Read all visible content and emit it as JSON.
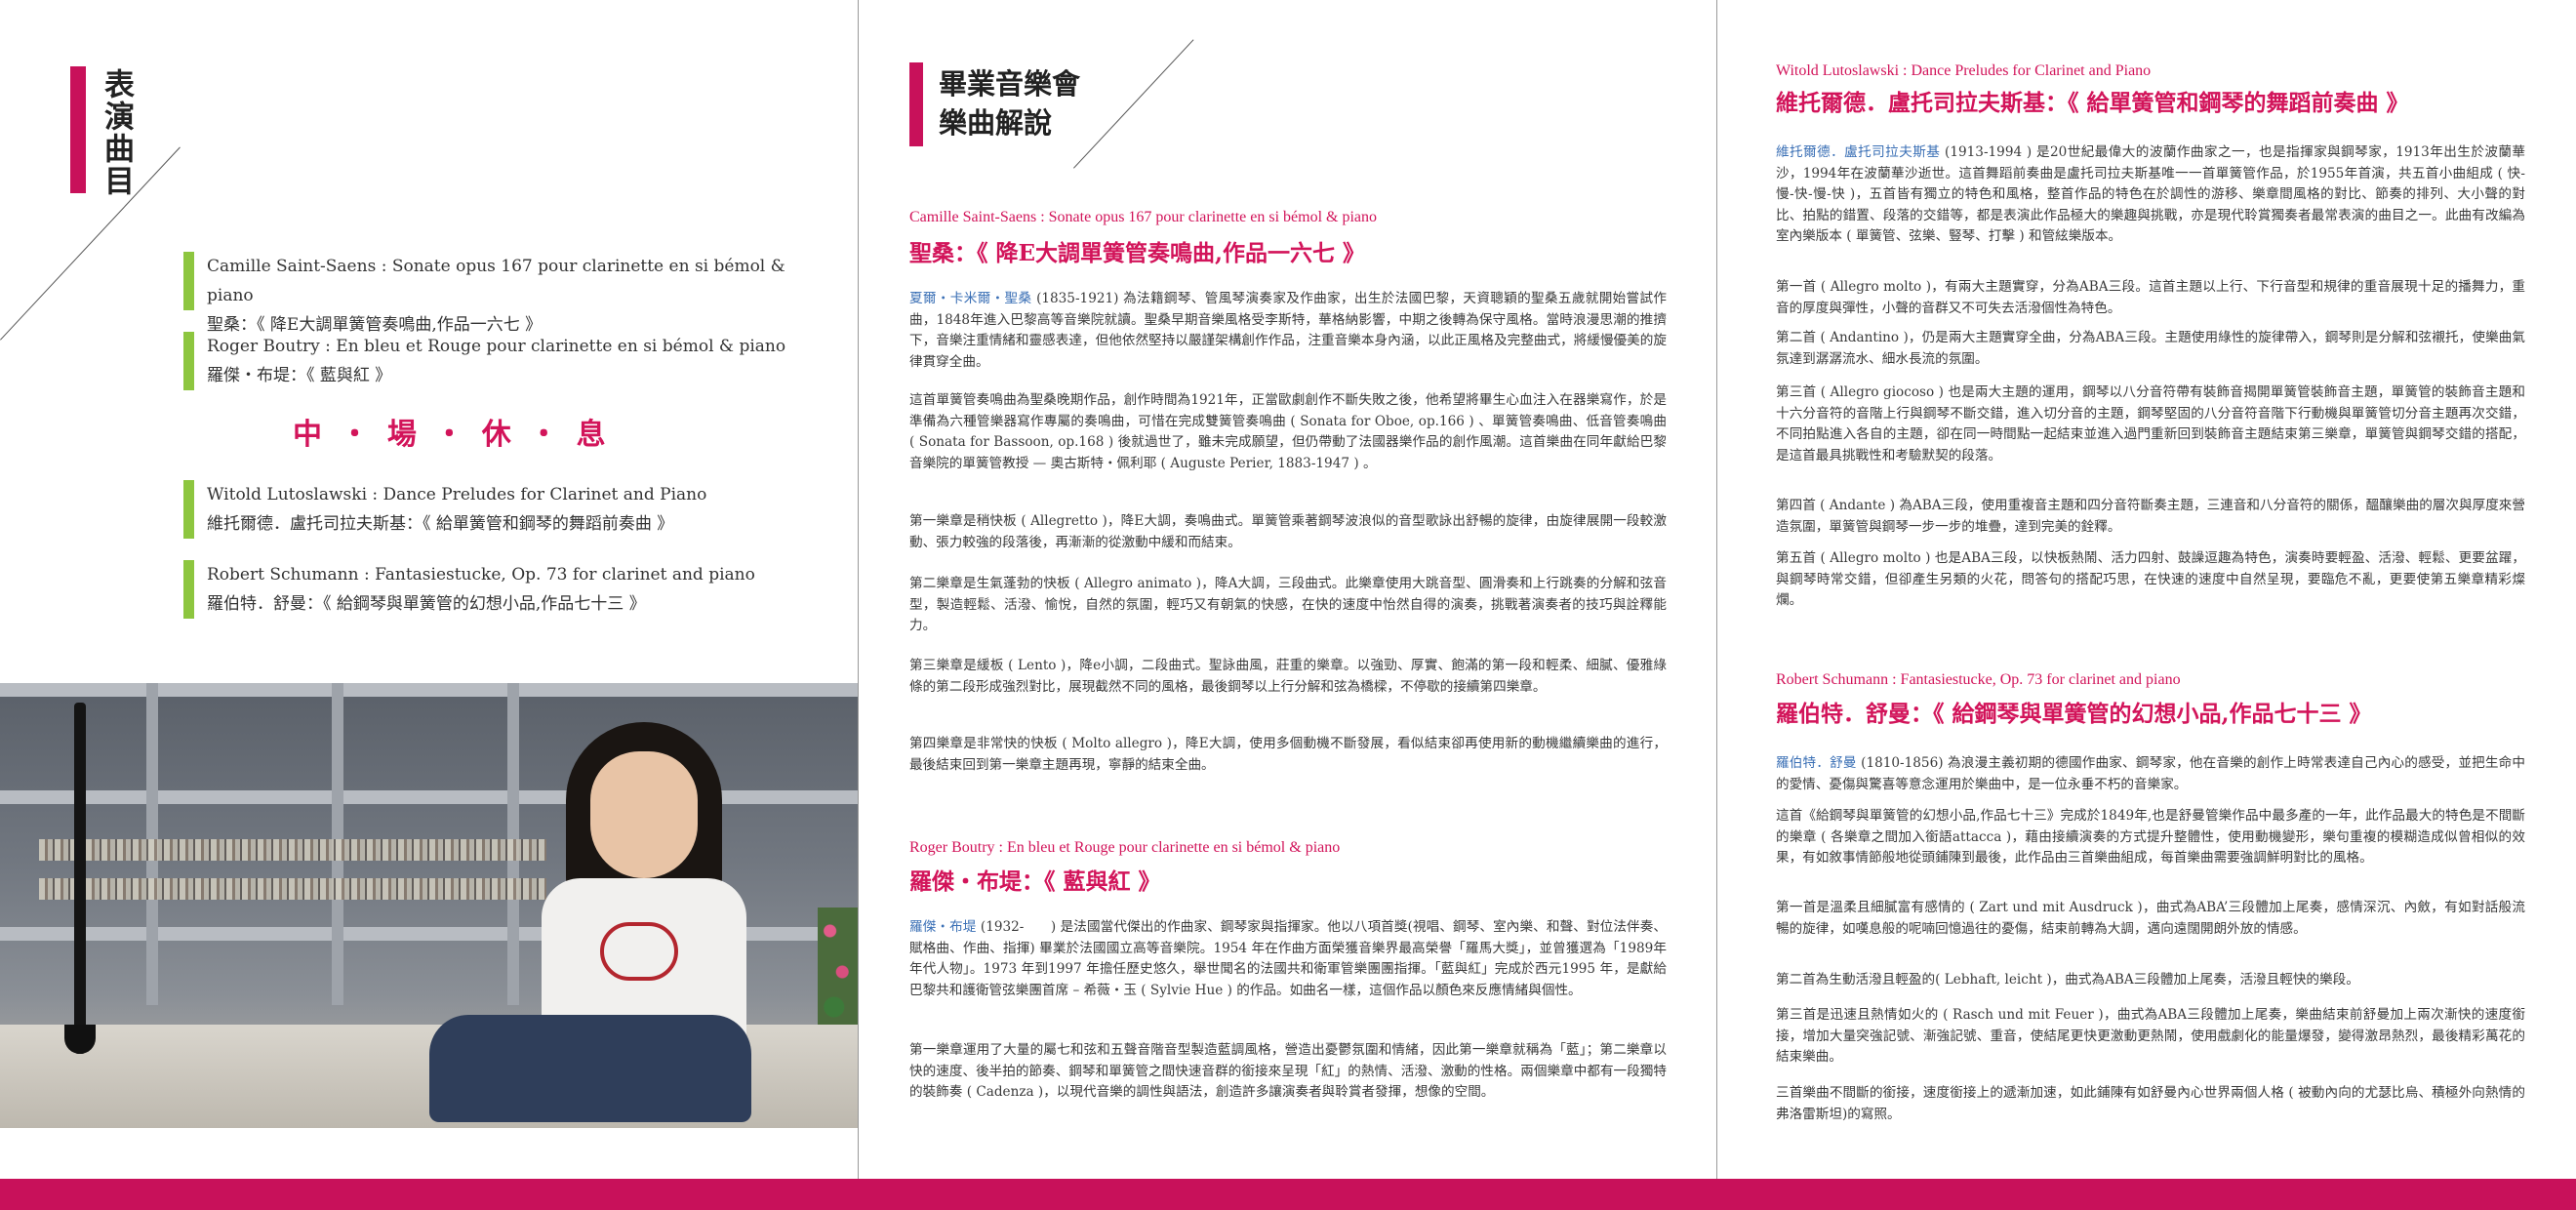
{
  "program": {
    "title": "表演曲目",
    "items": [
      {
        "en": "Camille Saint-Saens : Sonate opus 167 pour clarinette en si bémol & piano",
        "zh": "聖桑：《 降E大調單簧管奏鳴曲,作品一六七 》"
      },
      {
        "en": "Roger Boutry : En bleu et Rouge pour clarinette en si bémol & piano",
        "zh": "羅傑・布堤：《 藍與紅 》"
      },
      {
        "en": "Witold Lutoslawski : Dance Preludes for Clarinet and Piano",
        "zh": "維托爾德．盧托司拉夫斯基：《 給單簧管和鋼琴的舞蹈前奏曲 》"
      },
      {
        "en": "Robert Schumann : Fantasiestucke, Op. 73 for clarinet and piano",
        "zh": "羅伯特．舒曼：《 給鋼琴與單簧管的幻想小品,作品七十三 》"
      }
    ],
    "intermission": "中 ・ 場 ・ 休 ・ 息"
  },
  "notes": {
    "title_line1": "畢業音樂會",
    "title_line2": "樂曲解說",
    "saint_saens": {
      "en": "Camille Saint-Saens : Sonate opus 167 pour clarinette en si bémol & piano",
      "zh": "聖桑：《 降E大調單簧管奏鳴曲,作品一六七 》",
      "p1_name": "夏爾・卡米爾・聖桑",
      "p1": "(1835-1921) 為法籍鋼琴、管風琴演奏家及作曲家，出生於法國巴黎，天資聰穎的聖桑五歲就開始嘗試作曲，1848年進入巴黎高等音樂院就讀。聖桑早期音樂風格受李斯特，華格納影響，中期之後轉為保守風格。當時浪漫思潮的推擠下，音樂注重情緒和靈感表達，但他依然堅持以嚴謹架構創作作品，注重音樂本身內涵，以此正風格及完整曲式，將緩慢優美的旋律貫穿全曲。",
      "p2": "這首單簧管奏鳴曲為聖桑晚期作品，創作時間為1921年，正當歐劇創作不斷失敗之後，他希望將畢生心血注入在器樂寫作，於是準備為六種管樂器寫作專屬的奏鳴曲，可惜在完成雙簧管奏鳴曲 ( Sonata for Oboe, op.166 ) 、單簧管奏鳴曲、低音管奏鳴曲 ( Sonata for Bassoon, op.168 ) 後就過世了，雖未完成願望，但仍帶動了法國器樂作品的創作風潮。這首樂曲在同年獻給巴黎音樂院的單簧管教授 — 奧古斯特・佩利耶 ( Auguste Perier, 1883-1947 ) 。",
      "p3": "第一樂章是稍快板 ( Allegretto )，降E大調，奏鳴曲式。單簧管乘著鋼琴波浪似的音型歌詠出舒暢的旋律，由旋律展開一段較激動、張力較強的段落後，再漸漸的從激動中緩和而結束。",
      "p4": "第二樂章是生氣蓬勃的快板 ( Allegro animato )，降A大調，三段曲式。此樂章使用大跳音型、圓滑奏和上行跳奏的分解和弦音型，製造輕鬆、活潑、愉悅，自然的氛圍，輕巧又有朝氣的快感，在快的速度中怡然自得的演奏，挑戰著演奏者的技巧與詮釋能力。",
      "p5": "第三樂章是緩板 ( Lento )，降e小調，二段曲式。聖詠曲風，莊重的樂章。以強勁、厚實、飽滿的第一段和輕柔、細膩、優雅綠條的第二段形成強烈對比，展現截然不同的風格，最後鋼琴以上行分解和弦為橋樑，不停歇的接續第四樂章。",
      "p6": "第四樂章是非常快的快板 ( Molto allegro )，降E大調，使用多個動機不斷發展，看似結束卻再使用新的動機繼續樂曲的進行，最後結束回到第一樂章主題再現，寧靜的結束全曲。"
    },
    "boutry": {
      "en": "Roger Boutry : En bleu et Rouge pour clarinette en si bémol & piano",
      "zh": "羅傑・布堤：《 藍與紅 》",
      "p1_name": "羅傑・布堤",
      "p1": "(1932-　　) 是法國當代傑出的作曲家、鋼琴家與指揮家。他以八項首獎(視唱、鋼琴、室內樂、和聲、對位法伴奏、賦格曲、作曲、指揮) 畢業於法國國立高等音樂院。1954 年在作曲方面榮獲音樂界最高榮譽「羅馬大獎」，並曾獲選為「1989年年代人物」。1973 年到1997 年擔任歷史悠久，舉世聞名的法國共和衛軍管樂團團指揮。「藍與紅」完成於西元1995 年，是獻給巴黎共和護衛管弦樂團首席 – 希薇・玉 ( Sylvie Hue ) 的作品。如曲名一樣，這個作品以顏色來反應情緒與個性。",
      "p2": "第一樂章運用了大量的屬七和弦和五聲音階音型製造藍調風格，營造出憂鬱氛圍和情緒，因此第一樂章就稱為「藍」；第二樂章以快的速度、後半拍的節奏、鋼琴和單簧管之間快速音群的銜接來呈現「紅」的熱情、活潑、激動的性格。兩個樂章中都有一段獨特的裝飾奏 ( Cadenza )，以現代音樂的調性與語法，創造許多讓演奏者與聆賞者發揮，想像的空間。"
    },
    "lutoslawski": {
      "en": "Witold Lutoslawski : Dance Preludes for Clarinet and Piano",
      "zh": "維托爾德．盧托司拉夫斯基：《 給單簧管和鋼琴的舞蹈前奏曲 》",
      "p1_name": "維托爾德．盧托司拉夫斯基",
      "p1": "(1913-1994 ) 是20世紀最偉大的波蘭作曲家之一，也是指揮家與鋼琴家，1913年出生於波蘭華沙，1994年在波蘭華沙逝世。這首舞蹈前奏曲是盧托司拉夫斯基唯一一首單簧管作品，於1955年首演，共五首小曲組成 ( 快-慢-快-慢-快 )，五首皆有獨立的特色和風格，整首作品的特色在於調性的游移、樂章間風格的對比、節奏的排列、大小聲的對比、拍點的錯置、段落的交錯等，都是表演此作品極大的樂趣與挑戰，亦是現代聆賞獨奏者最常表演的曲目之一。此曲有改編為室內樂版本 ( 單簧管、弦樂、豎琴、打擊 ) 和管絃樂版本。",
      "p2": "第一首 ( Allegro molto )，有兩大主題實穿，分為ABA三段。這首主題以上行、下行音型和規律的重音展現十足的播舞力，重音的厚度與彈性，小聲的音群又不可失去活潑個性為特色。",
      "p3": "第二首 ( Andantino )，仍是兩大主題實穿全曲，分為ABA三段。主題使用綠性的旋律帶入，鋼琴則是分解和弦襯托，使樂曲氣氛達到潺潺流水、細水長流的氛圍。",
      "p4": "第三首 ( Allegro giocoso ) 也是兩大主題的運用，鋼琴以八分音符帶有裝飾音揭開單簧管裝飾音主題，單簧管的裝飾音主題和十六分音符的音階上行與鋼琴不斷交錯，進入切分音的主題，鋼琴堅固的八分音符音階下行動機與單簧管切分音主題再次交錯，不同拍點進入各自的主題，卻在同一時間點一起結束並進入過門重新回到裝飾音主題結束第三樂章，單簧管與鋼琴交錯的搭配，是這首最具挑戰性和考驗默契的段落。",
      "p5": "第四首 ( Andante ) 為ABA三段，使用重複音主題和四分音符斷奏主題，三連音和八分音符的關係，醞釀樂曲的層次與厚度來營造氛圍，單簧管與鋼琴一步一步的堆疊，達到完美的銓釋。",
      "p6": "第五首 ( Allegro molto ) 也是ABA三段，以快板熱鬧、活力四射、鼓譟逗趣為特色，演奏時要輕盈、活潑、輕鬆、更要盆躍，與鋼琴時常交錯，但卻產生另類的火花，問答句的搭配巧思，在快速的速度中自然呈現，要臨危不亂，更要使第五樂章精彩燦爛。"
    },
    "schumann": {
      "en": "Robert Schumann : Fantasiestucke, Op. 73 for clarinet and piano",
      "zh": "羅伯特．舒曼：《 給鋼琴與單簧管的幻想小品,作品七十三 》",
      "p1_name": "羅伯特．舒曼",
      "p1": "(1810-1856) 為浪漫主義初期的德國作曲家、鋼琴家，他在音樂的創作上時常表達自己內心的感受，並把生命中的愛情、憂傷與驚喜等意念運用於樂曲中，是一位永垂不朽的音樂家。",
      "p2": "這首《給鋼琴與單簧管的幻想小品,作品七十三》完成於1849年,也是舒曼管樂作品中最多產的一年，此作品最大的特色是不間斷的樂章 ( 各樂章之間加入銜語attacca )，藉由接續演奏的方式提升整體性，使用動機變形，樂句重複的模糊造成似曾相似的效果，有如敘事情節般地從頭鋪陳到最後，此作品由三首樂曲組成，每首樂曲需要強調鮮明對比的風格。",
      "p3": "第一首是溫柔且細膩富有感情的 ( Zart und mit Ausdruck )，曲式為ABA’三段體加上尾奏，感情深沉、內斂，有如對話般流暢的旋律，如嘆息般的呢喃回憶過往的憂傷，結束前轉為大調，邁向遠闊開朗外放的情感。",
      "p4": "第二首為生動活潑且輕盈的( Lebhaft, leicht )，曲式為ABA三段體加上尾奏，活潑且輕快的樂段。",
      "p5": "第三首是迅速且熱情如火的 ( Rasch und mit Feuer )，曲式為ABA三段體加上尾奏，樂曲結束前舒曼加上兩次漸快的速度銜接，增加大量突強記號、漸強記號、重音，使結尾更快更激動更熱鬧，使用戲劇化的能量爆發，變得激昂熱烈，最後精彩萬花的結束樂曲。",
      "p6": "三首樂曲不間斷的銜接，速度銜接上的遞漸加速，如此鋪陳有如舒曼內心世界兩個人格 ( 被動內向的尤瑟比烏、積極外向熱情的弗洛雷斯坦)的寫照。"
    }
  },
  "colors": {
    "accent": "#c8115a",
    "green": "#8dc63f",
    "highlight": "#3a6fb5"
  }
}
